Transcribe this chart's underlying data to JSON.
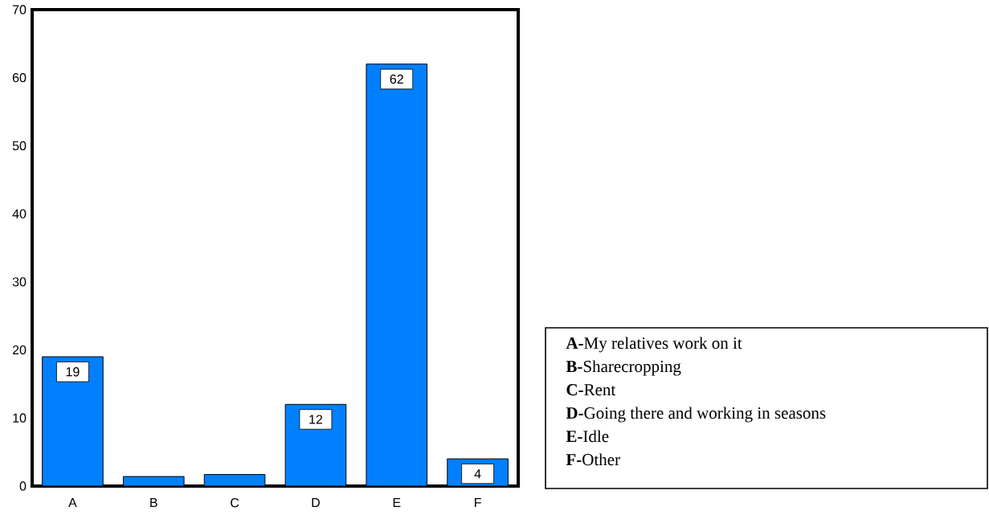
{
  "chart_data": {
    "type": "bar",
    "categories": [
      "A",
      "B",
      "C",
      "D",
      "E",
      "F"
    ],
    "values": [
      19,
      1.4,
      1.7,
      12,
      62,
      4
    ],
    "value_labels": [
      "19",
      null,
      null,
      "12",
      "62",
      "4"
    ],
    "color": "#0080ff",
    "ylim": [
      0,
      70
    ],
    "yticks": [
      0,
      10,
      20,
      30,
      40,
      50,
      60,
      70
    ],
    "grid": false,
    "annotations": [
      "**A-**My relatives work on it",
      "**B-**Sharecropping",
      "**C-**Rent",
      "**D-**Going there and working in seasons",
      "**E-**Idle",
      "**F-**Other"
    ]
  }
}
